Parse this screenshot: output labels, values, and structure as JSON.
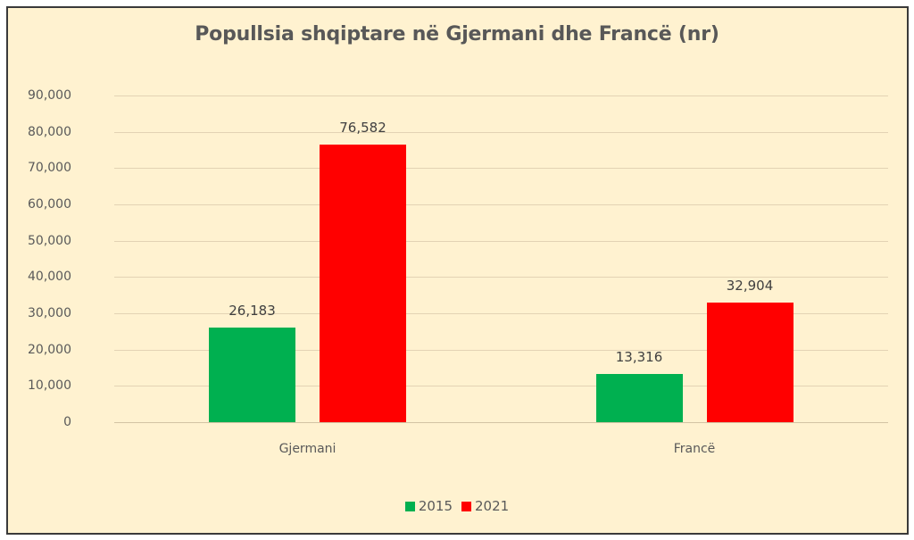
{
  "chart_data": {
    "type": "bar",
    "title": "Popullsia shqiptare në Gjermani dhe Francë (nr)",
    "xlabel": "",
    "ylabel": "",
    "categories": [
      "Gjermani",
      "Francë"
    ],
    "series": [
      {
        "name": "2015",
        "color": "#00b050",
        "values": [
          26183,
          13316
        ],
        "labels": [
          "26,183",
          "13,316"
        ]
      },
      {
        "name": "2021",
        "color": "#ff0000",
        "values": [
          76582,
          32904
        ],
        "labels": [
          "76,582",
          "32,904"
        ]
      }
    ],
    "ylim": [
      0,
      90000
    ],
    "yticks": [
      "0",
      "10,000",
      "20,000",
      "30,000",
      "40,000",
      "50,000",
      "60,000",
      "70,000",
      "80,000",
      "90,000"
    ],
    "grid": true,
    "legend_position": "bottom",
    "background": "#fff2d0"
  }
}
